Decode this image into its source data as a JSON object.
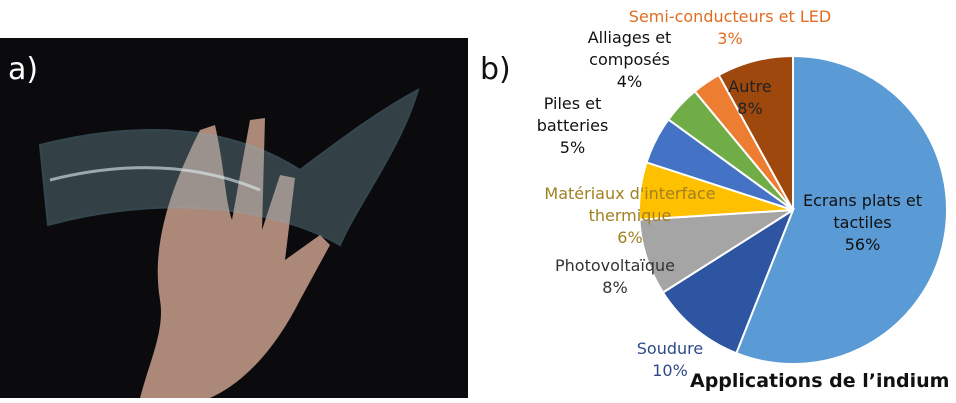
{
  "panel_labels": [
    "a)",
    "b)"
  ],
  "chart_data": {
    "type": "pie",
    "title": "Applications de l’indium",
    "categories": [
      "Ecrans plats et tactiles",
      "Soudure",
      "Photovoltaïque",
      "Matériaux d'interface thermique",
      "Piles et batteries",
      "Alliages et composés",
      "Semi-conducteurs et LED",
      "Autre"
    ],
    "values": [
      56,
      10,
      8,
      6,
      5,
      4,
      3,
      8
    ],
    "value_labels": [
      "56%",
      "10%",
      "8%",
      "6%",
      "5%",
      "4%",
      "3%",
      "8%"
    ],
    "colors": [
      "#5b9bd5",
      "#2e55a1",
      "#a5a5a5",
      "#ffc000",
      "#4472c4",
      "#70ad47",
      "#ed7d31",
      "#9e480e"
    ]
  }
}
